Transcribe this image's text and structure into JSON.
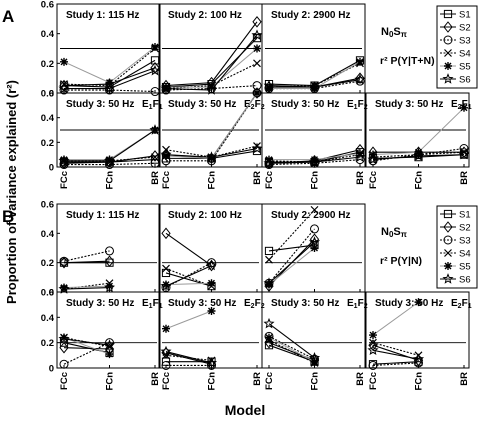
{
  "figure": {
    "ylabel": "Proportion of variance explained (r²)",
    "xlabel": "Model",
    "colors": {
      "axis": "#000000",
      "series_line": "#000000",
      "connector": "#9a9a9a",
      "reference": "#000000",
      "background": "#ffffff"
    }
  },
  "chart_data": [
    {
      "type": "line",
      "panel": "A",
      "row": 1,
      "col": 1,
      "label": "A",
      "title": "Study 1: 115 Hz",
      "categories": [
        "FCc",
        "FCn",
        "BR"
      ],
      "ylim": [
        0,
        0.6
      ],
      "yticks": [
        0,
        0.2,
        0.4,
        0.6
      ],
      "show_yticks": true,
      "show_xticks": false,
      "reference": 0.3,
      "series": [
        {
          "name": "S1",
          "values": [
            0.05,
            0.04,
            0.22
          ]
        },
        {
          "name": "S2",
          "values": [
            0.05,
            0.06,
            0.17
          ]
        },
        {
          "name": "S3",
          "values": [
            0.02,
            0.02,
            0.01
          ]
        },
        {
          "name": "S4",
          "values": [
            0.06,
            0.05,
            0.3
          ]
        },
        {
          "name": "S5",
          "values": [
            0.21,
            0.07,
            0.31
          ]
        },
        {
          "name": "S6",
          "values": [
            0.03,
            0.03,
            0.15
          ]
        }
      ]
    },
    {
      "type": "line",
      "panel": "A",
      "row": 1,
      "col": 2,
      "title": "Study 2: 100 Hz",
      "categories": [
        "FCc",
        "FCn",
        "BR"
      ],
      "ylim": [
        0,
        0.6
      ],
      "show_yticks": false,
      "show_xticks": false,
      "reference": 0.3,
      "series": [
        {
          "name": "S1",
          "values": [
            0.04,
            0.06,
            0.37
          ]
        },
        {
          "name": "S2",
          "values": [
            0.05,
            0.07,
            0.48
          ]
        },
        {
          "name": "S3",
          "values": [
            0.02,
            0.03,
            0.05
          ]
        },
        {
          "name": "S4",
          "values": [
            0.03,
            0.05,
            0.2
          ]
        },
        {
          "name": "S5",
          "values": [
            0.04,
            0.04,
            0.3
          ]
        },
        {
          "name": "S6",
          "values": [
            0.03,
            0.02,
            0.39
          ]
        }
      ]
    },
    {
      "type": "line",
      "panel": "A",
      "row": 1,
      "col": 3,
      "title": "Study 2: 2900 Hz",
      "categories": [
        "FCc",
        "FCn",
        "BR"
      ],
      "ylim": [
        0,
        0.6
      ],
      "show_yticks": false,
      "show_xticks": false,
      "reference": 0.3,
      "series": [
        {
          "name": "S1",
          "values": [
            0.06,
            0.05,
            0.22
          ]
        },
        {
          "name": "S2",
          "values": [
            0.04,
            0.04,
            0.1
          ]
        },
        {
          "name": "S3",
          "values": [
            0.03,
            0.03,
            0.08
          ]
        },
        {
          "name": "S4",
          "values": [
            0.04,
            0.05,
            0.2
          ]
        },
        {
          "name": "S5",
          "values": [
            0.03,
            0.03,
            0.21
          ]
        },
        {
          "name": "S6",
          "values": [
            0.05,
            0.04,
            0.09
          ]
        }
      ]
    },
    {
      "type": "line",
      "panel": "A",
      "row": 2,
      "col": 1,
      "title": "Study 3: 50 Hz",
      "condition": "E1F1",
      "categories": [
        "FCc",
        "FCn",
        "BR"
      ],
      "ylim": [
        0,
        0.6
      ],
      "yticks": [
        0,
        0.2,
        0.4,
        0.6
      ],
      "show_yticks": true,
      "show_xticks": true,
      "reference": 0.3,
      "series": [
        {
          "name": "S1",
          "values": [
            0.04,
            0.04,
            0.06
          ]
        },
        {
          "name": "S2",
          "values": [
            0.03,
            0.04,
            0.09
          ]
        },
        {
          "name": "S3",
          "values": [
            0.02,
            0.02,
            0.03
          ]
        },
        {
          "name": "S4",
          "values": [
            0.05,
            0.05,
            0.08
          ]
        },
        {
          "name": "S5",
          "values": [
            0.06,
            0.06,
            0.3
          ]
        },
        {
          "name": "S6",
          "values": [
            0.05,
            0.05,
            0.3
          ]
        }
      ]
    },
    {
      "type": "line",
      "panel": "A",
      "row": 2,
      "col": 2,
      "title": "Study 3: 50 Hz",
      "condition": "E2F2",
      "categories": [
        "FCc",
        "FCn",
        "BR"
      ],
      "ylim": [
        0,
        0.6
      ],
      "show_yticks": false,
      "show_xticks": true,
      "reference": 0.3,
      "series": [
        {
          "name": "S1",
          "values": [
            0.07,
            0.07,
            0.13
          ]
        },
        {
          "name": "S2",
          "values": [
            0.1,
            0.07,
            0.64
          ]
        },
        {
          "name": "S3",
          "values": [
            0.05,
            0.05,
            0.6
          ]
        },
        {
          "name": "S4",
          "values": [
            0.14,
            0.08,
            0.17
          ]
        },
        {
          "name": "S5",
          "values": [
            0.09,
            0.07,
            0.7
          ]
        },
        {
          "name": "S6",
          "values": [
            0.1,
            0.08,
            0.15
          ]
        }
      ]
    },
    {
      "type": "line",
      "panel": "A",
      "row": 2,
      "col": 3,
      "title": "Study 3: 50 Hz",
      "condition": "E1F2",
      "categories": [
        "FCc",
        "FCn",
        "BR"
      ],
      "ylim": [
        0,
        0.6
      ],
      "show_yticks": false,
      "show_xticks": true,
      "reference": 0.3,
      "series": [
        {
          "name": "S1",
          "values": [
            0.04,
            0.04,
            0.12
          ]
        },
        {
          "name": "S2",
          "values": [
            0.03,
            0.05,
            0.14
          ]
        },
        {
          "name": "S3",
          "values": [
            0.02,
            0.03,
            0.06
          ]
        },
        {
          "name": "S4",
          "values": [
            0.05,
            0.04,
            0.1
          ]
        },
        {
          "name": "S5",
          "values": [
            0.06,
            0.06,
            0.11
          ]
        },
        {
          "name": "S6",
          "values": [
            0.03,
            0.04,
            0.08
          ]
        }
      ]
    },
    {
      "type": "line",
      "panel": "A",
      "row": 2,
      "col": 4,
      "title": "Study 3: 50 Hz",
      "condition": "E2F1",
      "categories": [
        "FCc",
        "FCn",
        "BR"
      ],
      "ylim": [
        0,
        0.6
      ],
      "show_yticks": false,
      "show_xticks": true,
      "reference": 0.3,
      "series": [
        {
          "name": "S1",
          "values": [
            0.07,
            0.08,
            0.1
          ]
        },
        {
          "name": "S2",
          "values": [
            0.12,
            0.12,
            0.12
          ]
        },
        {
          "name": "S3",
          "values": [
            0.05,
            0.1,
            0.15
          ]
        },
        {
          "name": "S4",
          "values": [
            0.08,
            0.1,
            0.12
          ]
        },
        {
          "name": "S5",
          "values": [
            0.1,
            0.12,
            0.48
          ]
        },
        {
          "name": "S6",
          "values": [
            0.06,
            0.09,
            0.1
          ]
        }
      ]
    },
    {
      "type": "line",
      "panel": "B",
      "row": 1,
      "col": 1,
      "label": "B",
      "title": "Study 1: 115 Hz",
      "categories": [
        "FCc",
        "FCn",
        "BR"
      ],
      "ylim": [
        0,
        0.6
      ],
      "yticks": [
        0,
        0.2,
        0.4,
        0.6
      ],
      "show_yticks": true,
      "show_xticks": false,
      "reference": 0.2,
      "series": [
        {
          "name": "S1",
          "values": [
            0.2,
            0.2,
            null
          ]
        },
        {
          "name": "S2",
          "values": [
            0.2,
            0.21,
            null
          ]
        },
        {
          "name": "S3",
          "values": [
            0.21,
            0.28,
            null
          ]
        },
        {
          "name": "S4",
          "values": [
            0.02,
            0.06,
            null
          ]
        },
        {
          "name": "S5",
          "values": [
            0.03,
            0.04,
            null
          ]
        },
        {
          "name": "S6",
          "values": [
            0.02,
            0.03,
            null
          ]
        }
      ]
    },
    {
      "type": "line",
      "panel": "B",
      "row": 1,
      "col": 2,
      "title": "Study 2: 100 Hz",
      "categories": [
        "FCc",
        "FCn",
        "BR"
      ],
      "ylim": [
        0,
        0.6
      ],
      "show_yticks": false,
      "show_xticks": false,
      "reference": 0.2,
      "series": [
        {
          "name": "S1",
          "values": [
            0.13,
            0.04,
            null
          ]
        },
        {
          "name": "S2",
          "values": [
            0.4,
            0.18,
            null
          ]
        },
        {
          "name": "S3",
          "values": [
            0.03,
            0.2,
            null
          ]
        },
        {
          "name": "S4",
          "values": [
            0.16,
            0.04,
            null
          ]
        },
        {
          "name": "S5",
          "values": [
            0.05,
            0.06,
            null
          ]
        },
        {
          "name": "S6",
          "values": [
            0.04,
            0.18,
            null
          ]
        }
      ]
    },
    {
      "type": "line",
      "panel": "B",
      "row": 1,
      "col": 3,
      "title": "Study 2: 2900 Hz",
      "categories": [
        "FCc",
        "FCn",
        "BR"
      ],
      "ylim": [
        0,
        0.6
      ],
      "show_yticks": false,
      "show_xticks": false,
      "reference": 0.2,
      "series": [
        {
          "name": "S1",
          "values": [
            0.28,
            0.32,
            null
          ]
        },
        {
          "name": "S2",
          "values": [
            0.04,
            0.36,
            null
          ]
        },
        {
          "name": "S3",
          "values": [
            0.06,
            0.43,
            null
          ]
        },
        {
          "name": "S4",
          "values": [
            0.22,
            0.56,
            null
          ]
        },
        {
          "name": "S5",
          "values": [
            0.05,
            0.3,
            null
          ]
        },
        {
          "name": "S6",
          "values": [
            0.06,
            0.34,
            null
          ]
        }
      ]
    },
    {
      "type": "line",
      "panel": "B",
      "row": 2,
      "col": 1,
      "title": "Study 3: 50 Hz",
      "condition": "E1F1",
      "categories": [
        "FCc",
        "FCn",
        "BR"
      ],
      "ylim": [
        0,
        0.6
      ],
      "yticks": [
        0,
        0.2,
        0.4,
        0.6
      ],
      "show_yticks": true,
      "show_xticks": true,
      "reference": 0.2,
      "series": [
        {
          "name": "S1",
          "values": [
            0.2,
            0.12,
            null
          ]
        },
        {
          "name": "S2",
          "values": [
            0.16,
            0.15,
            null
          ]
        },
        {
          "name": "S3",
          "values": [
            0.03,
            0.2,
            null
          ]
        },
        {
          "name": "S4",
          "values": [
            0.24,
            0.17,
            null
          ]
        },
        {
          "name": "S5",
          "values": [
            0.24,
            0.11,
            null
          ]
        },
        {
          "name": "S6",
          "values": [
            0.23,
            0.18,
            null
          ]
        }
      ]
    },
    {
      "type": "line",
      "panel": "B",
      "row": 2,
      "col": 2,
      "title": "Study 3: 50 Hz",
      "condition": "E2F2",
      "categories": [
        "FCc",
        "FCn",
        "BR"
      ],
      "ylim": [
        0,
        0.6
      ],
      "show_yticks": false,
      "show_xticks": true,
      "reference": 0.2,
      "series": [
        {
          "name": "S1",
          "values": [
            0.05,
            0.05,
            null
          ]
        },
        {
          "name": "S2",
          "values": [
            0.12,
            0.03,
            null
          ]
        },
        {
          "name": "S3",
          "values": [
            0.02,
            0.02,
            null
          ]
        },
        {
          "name": "S4",
          "values": [
            0.1,
            0.06,
            null
          ]
        },
        {
          "name": "S5",
          "values": [
            0.31,
            0.45,
            null
          ]
        },
        {
          "name": "S6",
          "values": [
            0.13,
            0.04,
            null
          ]
        }
      ]
    },
    {
      "type": "line",
      "panel": "B",
      "row": 2,
      "col": 3,
      "title": "Study 3: 50 Hz",
      "condition": "E1F2",
      "categories": [
        "FCc",
        "FCn",
        "BR"
      ],
      "ylim": [
        0,
        0.6
      ],
      "show_yticks": false,
      "show_xticks": true,
      "reference": 0.2,
      "series": [
        {
          "name": "S1",
          "values": [
            0.18,
            0.05,
            null
          ]
        },
        {
          "name": "S2",
          "values": [
            0.2,
            0.06,
            null
          ]
        },
        {
          "name": "S3",
          "values": [
            0.25,
            0.07,
            null
          ]
        },
        {
          "name": "S4",
          "values": [
            0.22,
            0.04,
            null
          ]
        },
        {
          "name": "S5",
          "values": [
            0.24,
            0.05,
            null
          ]
        },
        {
          "name": "S6",
          "values": [
            0.35,
            0.08,
            null
          ]
        }
      ]
    },
    {
      "type": "line",
      "panel": "B",
      "row": 2,
      "col": 4,
      "title": "Study 3: 50 Hz",
      "condition": "E2F1",
      "categories": [
        "FCc",
        "FCn",
        "BR"
      ],
      "ylim": [
        0,
        0.6
      ],
      "show_yticks": false,
      "show_xticks": true,
      "reference": 0.2,
      "series": [
        {
          "name": "S1",
          "values": [
            0.03,
            0.05,
            null
          ]
        },
        {
          "name": "S2",
          "values": [
            0.18,
            0.06,
            null
          ]
        },
        {
          "name": "S3",
          "values": [
            0.02,
            0.04,
            null
          ]
        },
        {
          "name": "S4",
          "values": [
            0.2,
            0.1,
            null
          ]
        },
        {
          "name": "S5",
          "values": [
            0.26,
            0.52,
            null
          ]
        },
        {
          "name": "S6",
          "values": [
            0.14,
            0.07,
            null
          ]
        }
      ]
    }
  ],
  "legends": [
    {
      "panel": "A",
      "entries": [
        "S1",
        "S2",
        "S3",
        "S4",
        "S5",
        "S6"
      ],
      "placement": "right",
      "condition_label": "N0Sπ",
      "measure_label": "r² P(Y|T+N)"
    },
    {
      "panel": "B",
      "entries": [
        "S1",
        "S2",
        "S3",
        "S4",
        "S5",
        "S6"
      ],
      "placement": "right",
      "condition_label": "N0Sπ",
      "measure_label": "r² P(Y|N)"
    }
  ]
}
